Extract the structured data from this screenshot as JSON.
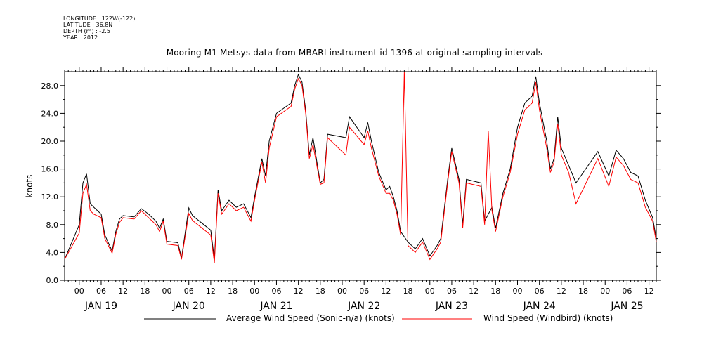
{
  "header": {
    "longitude": "LONGITUDE : 122W(-122)",
    "latitude": "LATITUDE : 36.8N",
    "depth": "DEPTH (m) : -2.5",
    "year": "YEAR : 2012"
  },
  "chart_data": {
    "type": "line",
    "title": "Mooring M1 Metsys data from MBARI instrument id 1396 at original sampling intervals",
    "ylabel": "knots",
    "xlabel": "",
    "ylim": [
      0,
      30
    ],
    "y_ticks": [
      "0.0",
      "4.0",
      "8.0",
      "12.0",
      "16.0",
      "20.0",
      "24.0",
      "28.0"
    ],
    "x_range_hours": [
      "2012-01-18T20:00",
      "2012-01-25T14:00"
    ],
    "x_hour_ticks": [
      "00",
      "06",
      "12",
      "18",
      "00",
      "06",
      "12",
      "18",
      "00",
      "06",
      "12",
      "18",
      "00",
      "06",
      "12",
      "18",
      "00",
      "06",
      "12",
      "18",
      "00",
      "06",
      "12",
      "18",
      "00",
      "06",
      "12"
    ],
    "x_day_labels": [
      "JAN 19",
      "JAN 20",
      "JAN 21",
      "JAN 22",
      "JAN 23",
      "JAN 24",
      "JAN 25"
    ],
    "legend_position": "bottom",
    "series": [
      {
        "name": "Average Wind Speed (Sonic-n/a) (knots)",
        "color": "#000000",
        "points": [
          [
            "2012-01-18T20:00",
            3.0
          ],
          [
            "2012-01-19T00:00",
            8.0
          ],
          [
            "2012-01-19T01:00",
            14.0
          ],
          [
            "2012-01-19T02:00",
            15.3
          ],
          [
            "2012-01-19T03:00",
            11.0
          ],
          [
            "2012-01-19T04:00",
            10.5
          ],
          [
            "2012-01-19T06:00",
            9.5
          ],
          [
            "2012-01-19T07:00",
            6.5
          ],
          [
            "2012-01-19T09:00",
            4.2
          ],
          [
            "2012-01-19T10:00",
            7.0
          ],
          [
            "2012-01-19T11:00",
            8.8
          ],
          [
            "2012-01-19T12:00",
            9.3
          ],
          [
            "2012-01-19T15:00",
            9.1
          ],
          [
            "2012-01-19T17:00",
            10.3
          ],
          [
            "2012-01-19T19:00",
            9.5
          ],
          [
            "2012-01-19T21:00",
            8.5
          ],
          [
            "2012-01-19T22:00",
            7.5
          ],
          [
            "2012-01-19T23:00",
            8.8
          ],
          [
            "2012-01-20T00:00",
            5.6
          ],
          [
            "2012-01-20T03:00",
            5.4
          ],
          [
            "2012-01-20T04:00",
            3.2
          ],
          [
            "2012-01-20T06:00",
            10.4
          ],
          [
            "2012-01-20T07:00",
            9.3
          ],
          [
            "2012-01-20T12:00",
            7.2
          ],
          [
            "2012-01-20T13:00",
            3.0
          ],
          [
            "2012-01-20T14:00",
            13.0
          ],
          [
            "2012-01-20T15:00",
            10.0
          ],
          [
            "2012-01-20T17:00",
            11.5
          ],
          [
            "2012-01-20T19:00",
            10.5
          ],
          [
            "2012-01-20T21:00",
            11.0
          ],
          [
            "2012-01-20T23:00",
            9.0
          ],
          [
            "2012-01-21T00:00",
            12.0
          ],
          [
            "2012-01-21T02:00",
            17.5
          ],
          [
            "2012-01-21T03:00",
            15.0
          ],
          [
            "2012-01-21T04:00",
            20.0
          ],
          [
            "2012-01-21T06:00",
            24.0
          ],
          [
            "2012-01-21T10:00",
            25.5
          ],
          [
            "2012-01-21T11:00",
            28.0
          ],
          [
            "2012-01-21T12:00",
            29.6
          ],
          [
            "2012-01-21T13:00",
            28.5
          ],
          [
            "2012-01-21T14:00",
            24.5
          ],
          [
            "2012-01-21T15:00",
            18.0
          ],
          [
            "2012-01-21T16:00",
            20.5
          ],
          [
            "2012-01-21T18:00",
            14.0
          ],
          [
            "2012-01-21T19:00",
            14.5
          ],
          [
            "2012-01-21T20:00",
            21.0
          ],
          [
            "2012-01-22T01:00",
            20.5
          ],
          [
            "2012-01-22T02:00",
            23.5
          ],
          [
            "2012-01-22T06:00",
            20.5
          ],
          [
            "2012-01-22T07:00",
            22.7
          ],
          [
            "2012-01-22T08:00",
            20.0
          ],
          [
            "2012-01-22T10:00",
            15.5
          ],
          [
            "2012-01-22T12:00",
            13.0
          ],
          [
            "2012-01-22T13:00",
            13.5
          ],
          [
            "2012-01-22T14:00",
            12.0
          ],
          [
            "2012-01-22T15:00",
            10.0
          ],
          [
            "2012-01-22T16:00",
            7.0
          ],
          [
            "2012-01-22T18:00",
            5.5
          ],
          [
            "2012-01-22T20:00",
            4.5
          ],
          [
            "2012-01-22T22:00",
            6.0
          ],
          [
            "2012-01-23T00:00",
            3.5
          ],
          [
            "2012-01-23T02:00",
            5.0
          ],
          [
            "2012-01-23T03:00",
            6.0
          ],
          [
            "2012-01-23T05:00",
            15.0
          ],
          [
            "2012-01-23T06:00",
            19.0
          ],
          [
            "2012-01-23T08:00",
            14.5
          ],
          [
            "2012-01-23T09:00",
            8.0
          ],
          [
            "2012-01-23T10:00",
            14.5
          ],
          [
            "2012-01-23T14:00",
            14.0
          ],
          [
            "2012-01-23T15:00",
            8.5
          ],
          [
            "2012-01-23T17:00",
            10.5
          ],
          [
            "2012-01-23T18:00",
            7.5
          ],
          [
            "2012-01-23T20:00",
            12.5
          ],
          [
            "2012-01-23T22:00",
            16.0
          ],
          [
            "2012-01-24T00:00",
            22.0
          ],
          [
            "2012-01-24T02:00",
            25.5
          ],
          [
            "2012-01-24T04:00",
            26.5
          ],
          [
            "2012-01-24T05:00",
            29.3
          ],
          [
            "2012-01-24T06:00",
            25.5
          ],
          [
            "2012-01-24T08:00",
            20.0
          ],
          [
            "2012-01-24T09:00",
            16.0
          ],
          [
            "2012-01-24T10:00",
            17.5
          ],
          [
            "2012-01-24T11:00",
            23.5
          ],
          [
            "2012-01-24T12:00",
            19.0
          ],
          [
            "2012-01-24T14:00",
            16.5
          ],
          [
            "2012-01-24T16:00",
            14.0
          ],
          [
            "2012-01-24T22:00",
            18.5
          ],
          [
            "2012-01-25T01:00",
            15.0
          ],
          [
            "2012-01-25T03:00",
            18.7
          ],
          [
            "2012-01-25T05:00",
            17.5
          ],
          [
            "2012-01-25T07:00",
            15.5
          ],
          [
            "2012-01-25T09:00",
            15.0
          ],
          [
            "2012-01-25T11:00",
            11.5
          ],
          [
            "2012-01-25T13:00",
            9.0
          ],
          [
            "2012-01-25T14:00",
            6.0
          ]
        ]
      },
      {
        "name": "Wind Speed (Windbird) (knots)",
        "color": "#ff0000",
        "points": [
          [
            "2012-01-18T20:00",
            3.0
          ],
          [
            "2012-01-19T00:00",
            6.8
          ],
          [
            "2012-01-19T01:00",
            12.5
          ],
          [
            "2012-01-19T02:00",
            13.8
          ],
          [
            "2012-01-19T03:00",
            10.0
          ],
          [
            "2012-01-19T04:00",
            9.5
          ],
          [
            "2012-01-19T06:00",
            9.0
          ],
          [
            "2012-01-19T07:00",
            6.0
          ],
          [
            "2012-01-19T09:00",
            3.9
          ],
          [
            "2012-01-19T10:00",
            6.6
          ],
          [
            "2012-01-19T11:00",
            8.3
          ],
          [
            "2012-01-19T12:00",
            9.0
          ],
          [
            "2012-01-19T15:00",
            8.8
          ],
          [
            "2012-01-19T17:00",
            10.0
          ],
          [
            "2012-01-19T19:00",
            9.0
          ],
          [
            "2012-01-19T21:00",
            8.0
          ],
          [
            "2012-01-19T22:00",
            7.0
          ],
          [
            "2012-01-19T23:00",
            8.5
          ],
          [
            "2012-01-20T00:00",
            5.2
          ],
          [
            "2012-01-20T03:00",
            5.0
          ],
          [
            "2012-01-20T04:00",
            3.0
          ],
          [
            "2012-01-20T06:00",
            9.6
          ],
          [
            "2012-01-20T07:00",
            8.6
          ],
          [
            "2012-01-20T12:00",
            6.5
          ],
          [
            "2012-01-20T13:00",
            2.5
          ],
          [
            "2012-01-20T14:00",
            12.5
          ],
          [
            "2012-01-20T15:00",
            9.5
          ],
          [
            "2012-01-20T17:00",
            11.0
          ],
          [
            "2012-01-20T19:00",
            10.0
          ],
          [
            "2012-01-20T21:00",
            10.5
          ],
          [
            "2012-01-20T23:00",
            8.5
          ],
          [
            "2012-01-21T00:00",
            11.5
          ],
          [
            "2012-01-21T02:00",
            17.0
          ],
          [
            "2012-01-21T03:00",
            14.0
          ],
          [
            "2012-01-21T04:00",
            19.0
          ],
          [
            "2012-01-21T06:00",
            23.5
          ],
          [
            "2012-01-21T10:00",
            25.0
          ],
          [
            "2012-01-21T11:00",
            27.5
          ],
          [
            "2012-01-21T12:00",
            29.0
          ],
          [
            "2012-01-21T13:00",
            28.0
          ],
          [
            "2012-01-21T14:00",
            24.0
          ],
          [
            "2012-01-21T15:00",
            17.5
          ],
          [
            "2012-01-21T16:00",
            19.5
          ],
          [
            "2012-01-21T18:00",
            13.8
          ],
          [
            "2012-01-21T19:00",
            14.0
          ],
          [
            "2012-01-21T20:00",
            20.5
          ],
          [
            "2012-01-22T01:00",
            18.0
          ],
          [
            "2012-01-22T02:00",
            22.0
          ],
          [
            "2012-01-22T06:00",
            19.5
          ],
          [
            "2012-01-22T07:00",
            21.5
          ],
          [
            "2012-01-22T08:00",
            19.0
          ],
          [
            "2012-01-22T10:00",
            15.0
          ],
          [
            "2012-01-22T12:00",
            12.5
          ],
          [
            "2012-01-22T13:00",
            12.5
          ],
          [
            "2012-01-22T14:00",
            11.5
          ],
          [
            "2012-01-22T15:00",
            9.5
          ],
          [
            "2012-01-22T16:00",
            6.5
          ],
          [
            "2012-01-22T17:00",
            30.0
          ],
          [
            "2012-01-22T18:00",
            5.0
          ],
          [
            "2012-01-22T20:00",
            4.0
          ],
          [
            "2012-01-22T22:00",
            5.5
          ],
          [
            "2012-01-23T00:00",
            3.0
          ],
          [
            "2012-01-23T02:00",
            4.5
          ],
          [
            "2012-01-23T03:00",
            5.5
          ],
          [
            "2012-01-23T05:00",
            14.5
          ],
          [
            "2012-01-23T06:00",
            18.5
          ],
          [
            "2012-01-23T08:00",
            14.0
          ],
          [
            "2012-01-23T09:00",
            7.5
          ],
          [
            "2012-01-23T10:00",
            14.0
          ],
          [
            "2012-01-23T14:00",
            13.5
          ],
          [
            "2012-01-23T15:00",
            8.0
          ],
          [
            "2012-01-23T16:00",
            21.5
          ],
          [
            "2012-01-23T17:00",
            10.0
          ],
          [
            "2012-01-23T18:00",
            7.0
          ],
          [
            "2012-01-23T20:00",
            12.0
          ],
          [
            "2012-01-23T22:00",
            15.5
          ],
          [
            "2012-01-24T00:00",
            21.0
          ],
          [
            "2012-01-24T02:00",
            24.5
          ],
          [
            "2012-01-24T04:00",
            25.5
          ],
          [
            "2012-01-24T05:00",
            28.5
          ],
          [
            "2012-01-24T06:00",
            24.5
          ],
          [
            "2012-01-24T08:00",
            19.0
          ],
          [
            "2012-01-24T09:00",
            15.5
          ],
          [
            "2012-01-24T10:00",
            17.0
          ],
          [
            "2012-01-24T11:00",
            22.5
          ],
          [
            "2012-01-24T12:00",
            18.0
          ],
          [
            "2012-01-24T14:00",
            15.5
          ],
          [
            "2012-01-24T16:00",
            11.0
          ],
          [
            "2012-01-24T22:00",
            17.5
          ],
          [
            "2012-01-25T01:00",
            13.5
          ],
          [
            "2012-01-25T03:00",
            17.7
          ],
          [
            "2012-01-25T05:00",
            16.5
          ],
          [
            "2012-01-25T07:00",
            14.5
          ],
          [
            "2012-01-25T09:00",
            14.0
          ],
          [
            "2012-01-25T11:00",
            10.5
          ],
          [
            "2012-01-25T13:00",
            8.5
          ],
          [
            "2012-01-25T14:00",
            5.5
          ]
        ]
      }
    ]
  }
}
